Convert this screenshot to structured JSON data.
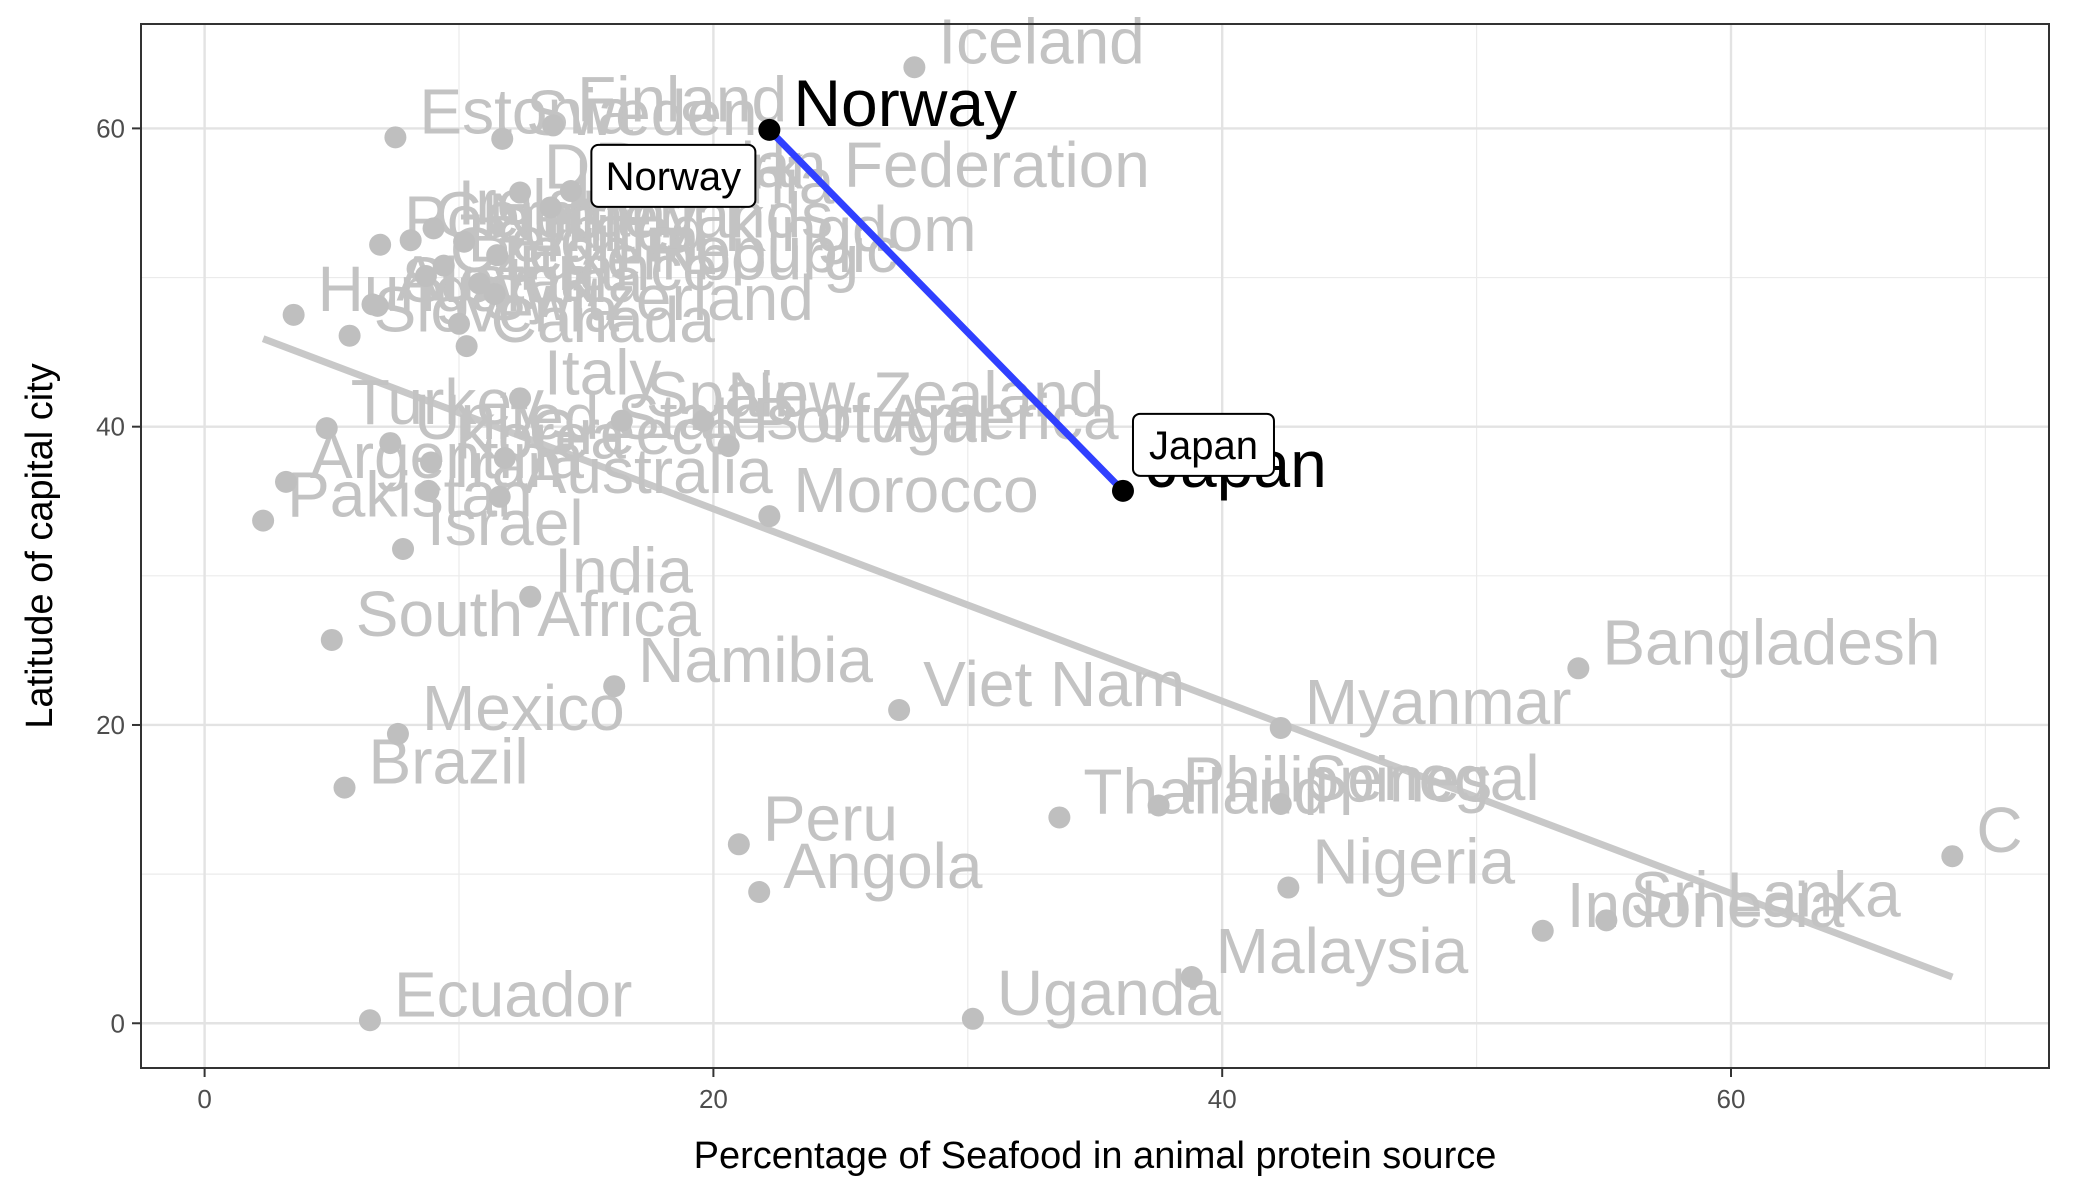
{
  "chart_data": {
    "type": "scatter",
    "xlabel": "Percentage of Seafood in animal protein source",
    "ylabel": "Latitude of capital city",
    "xlim": [
      -2.5,
      72.5
    ],
    "ylim": [
      -3,
      67
    ],
    "x_ticks": [
      0,
      20,
      40,
      60
    ],
    "y_ticks": [
      0,
      20,
      40,
      60
    ],
    "grid": true,
    "points": [
      {
        "label": "Iceland",
        "x": 27.9,
        "y": 64.1
      },
      {
        "label": "Finland",
        "x": 13.7,
        "y": 60.2
      },
      {
        "label": "Sweden",
        "x": 11.7,
        "y": 59.3
      },
      {
        "label": "Estonia",
        "x": 7.5,
        "y": 59.4
      },
      {
        "label": "Russian Federation",
        "x": 14.4,
        "y": 55.8
      },
      {
        "label": "Lithuania",
        "x": 13.6,
        "y": 54.7
      },
      {
        "label": "Denmark",
        "x": 12.4,
        "y": 55.7
      },
      {
        "label": "Ireland",
        "x": 9.0,
        "y": 53.3
      },
      {
        "label": "United Kingdom",
        "x": 11.5,
        "y": 51.5
      },
      {
        "label": "Germany",
        "x": 8.1,
        "y": 52.5
      },
      {
        "label": "Netherlands",
        "x": 10.2,
        "y": 52.4
      },
      {
        "label": "Poland",
        "x": 6.9,
        "y": 52.2
      },
      {
        "label": "Belgium",
        "x": 9.4,
        "y": 50.8
      },
      {
        "label": "Luxembourg",
        "x": 10.8,
        "y": 49.6
      },
      {
        "label": "France",
        "x": 11.4,
        "y": 48.9
      },
      {
        "label": "Czech Republic",
        "x": 8.7,
        "y": 50.1
      },
      {
        "label": "Austria",
        "x": 6.6,
        "y": 48.2
      },
      {
        "label": "Slovakia",
        "x": 6.8,
        "y": 48.1
      },
      {
        "label": "Switzerland",
        "x": 10.0,
        "y": 46.9
      },
      {
        "label": "Hungary",
        "x": 3.5,
        "y": 47.5
      },
      {
        "label": "Slovenia",
        "x": 5.7,
        "y": 46.1
      },
      {
        "label": "Canada",
        "x": 10.3,
        "y": 45.4
      },
      {
        "label": "Italy",
        "x": 12.4,
        "y": 41.9
      },
      {
        "label": "New Zealand",
        "x": 19.6,
        "y": 40.4
      },
      {
        "label": "Turkey",
        "x": 4.8,
        "y": 39.9
      },
      {
        "label": "United States of America",
        "x": 7.3,
        "y": 38.9
      },
      {
        "label": "Spain",
        "x": 16.4,
        "y": 40.4
      },
      {
        "label": "Portugal",
        "x": 20.6,
        "y": 38.7
      },
      {
        "label": "Greece",
        "x": 11.8,
        "y": 37.9
      },
      {
        "label": "Korea",
        "x": 8.9,
        "y": 37.6
      },
      {
        "label": "Argentina",
        "x": 3.2,
        "y": 36.3
      },
      {
        "label": "Australia",
        "x": 11.6,
        "y": 35.3
      },
      {
        "label": "Iran",
        "x": 8.8,
        "y": 35.7
      },
      {
        "label": "Pakistan",
        "x": 2.3,
        "y": 33.7
      },
      {
        "label": "Israel",
        "x": 7.8,
        "y": 31.8
      },
      {
        "label": "Morocco",
        "x": 22.2,
        "y": 34.0
      },
      {
        "label": "India",
        "x": 12.8,
        "y": 28.6
      },
      {
        "label": "South Africa",
        "x": 5.0,
        "y": 25.7
      },
      {
        "label": "Namibia",
        "x": 16.1,
        "y": 22.6
      },
      {
        "label": "Viet Nam",
        "x": 27.3,
        "y": 21.0
      },
      {
        "label": "Mexico",
        "x": 7.6,
        "y": 19.4
      },
      {
        "label": "Myanmar",
        "x": 42.3,
        "y": 19.8
      },
      {
        "label": "Bangladesh",
        "x": 54.0,
        "y": 23.8
      },
      {
        "label": "Brazil",
        "x": 5.5,
        "y": 15.8
      },
      {
        "label": "Thailand",
        "x": 33.6,
        "y": 13.8
      },
      {
        "label": "Philippines",
        "x": 37.5,
        "y": 14.6
      },
      {
        "label": "Senegal",
        "x": 42.3,
        "y": 14.7
      },
      {
        "label": "Peru",
        "x": 21.0,
        "y": 12.0
      },
      {
        "label": "C",
        "x": 68.7,
        "y": 11.2
      },
      {
        "label": "Nigeria",
        "x": 42.6,
        "y": 9.1
      },
      {
        "label": "Angola",
        "x": 21.8,
        "y": 8.8
      },
      {
        "label": "Sri Lanka",
        "x": 55.1,
        "y": 6.9
      },
      {
        "label": "Indonesia",
        "x": 52.6,
        "y": 6.2
      },
      {
        "label": "Malaysia",
        "x": 38.8,
        "y": 3.1
      },
      {
        "label": "Ecuador",
        "x": 6.5,
        "y": 0.2
      },
      {
        "label": "Uganda",
        "x": 30.2,
        "y": 0.3
      }
    ],
    "highlighted": [
      {
        "label": "Norway",
        "x": 22.2,
        "y": 59.9
      },
      {
        "label": "Japan",
        "x": 36.1,
        "y": 35.7
      }
    ],
    "trend_line": {
      "x": [
        2.3,
        68.7
      ],
      "y": [
        45.9,
        3.1
      ]
    },
    "connector_line": {
      "from": "Norway",
      "to": "Japan",
      "color": "#3040ff"
    },
    "colors": {
      "points": "#bfbfbf",
      "labels": "#c3c3c3",
      "trend": "#c8c8c8",
      "highlight": "#000000",
      "connector": "#3040ff"
    }
  }
}
